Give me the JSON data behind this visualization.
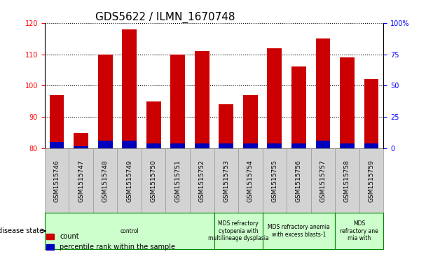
{
  "title": "GDS5622 / ILMN_1670748",
  "samples": [
    "GSM1515746",
    "GSM1515747",
    "GSM1515748",
    "GSM1515749",
    "GSM1515750",
    "GSM1515751",
    "GSM1515752",
    "GSM1515753",
    "GSM1515754",
    "GSM1515755",
    "GSM1515756",
    "GSM1515757",
    "GSM1515758",
    "GSM1515759"
  ],
  "count_values": [
    97,
    85,
    110,
    118,
    95,
    110,
    111,
    94,
    97,
    112,
    106,
    115,
    109,
    102
  ],
  "percentile_values": [
    5,
    2,
    6,
    6,
    4,
    4,
    4,
    4,
    4,
    4,
    4,
    6,
    4,
    4
  ],
  "ymin": 80,
  "ymax": 120,
  "yticks": [
    80,
    90,
    100,
    110,
    120
  ],
  "right_ytick_labels": [
    "0",
    "25",
    "50",
    "75",
    "100%"
  ],
  "bar_color_red": "#cc0000",
  "bar_color_blue": "#0000bb",
  "bar_width": 0.6,
  "disease_groups": [
    {
      "label": "control",
      "start": 0,
      "end": 7
    },
    {
      "label": "MDS refractory\ncytopenia with\nmultilineage dysplasia",
      "start": 7,
      "end": 9
    },
    {
      "label": "MDS refractory anemia\nwith excess blasts-1",
      "start": 9,
      "end": 12
    },
    {
      "label": "MDS\nrefractory ane\nmia with",
      "start": 12,
      "end": 14
    }
  ],
  "disease_group_color": "#ccffcc",
  "disease_group_border": "#008800",
  "legend_count_label": "count",
  "legend_pct_label": "percentile rank within the sample",
  "disease_state_label": "disease state",
  "title_fontsize": 11,
  "tick_fontsize": 7,
  "xtick_fontsize": 6.5,
  "disease_fontsize": 5.5,
  "legend_fontsize": 7
}
